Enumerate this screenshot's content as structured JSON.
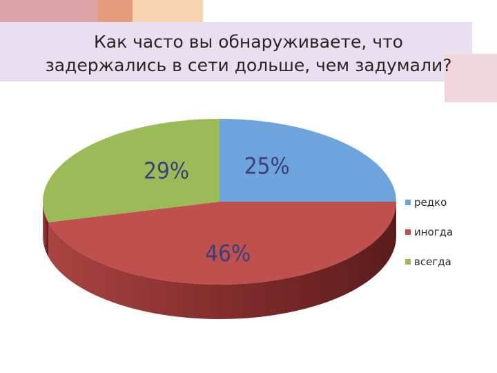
{
  "title": "Как часто вы обнаруживаете, что\nзадержались в сети  дольше, чем задумали?",
  "chart_data": {
    "type": "pie",
    "title": "Как часто вы обнаруживаете, что задержались в сети  дольше, чем задумали?",
    "style": "3d",
    "legend_position": "right",
    "slices": [
      {
        "name": "редко",
        "value": 25,
        "label": "25%",
        "color": "#6fa3dc",
        "side_color": "#4a78ab"
      },
      {
        "name": "иногда",
        "value": 46,
        "label": "46%",
        "color": "#c0504d",
        "side_color": "#7a2626"
      },
      {
        "name": "всегда",
        "value": 29,
        "label": "29%",
        "color": "#9bbb59",
        "side_color": "#6e8a38"
      }
    ]
  }
}
